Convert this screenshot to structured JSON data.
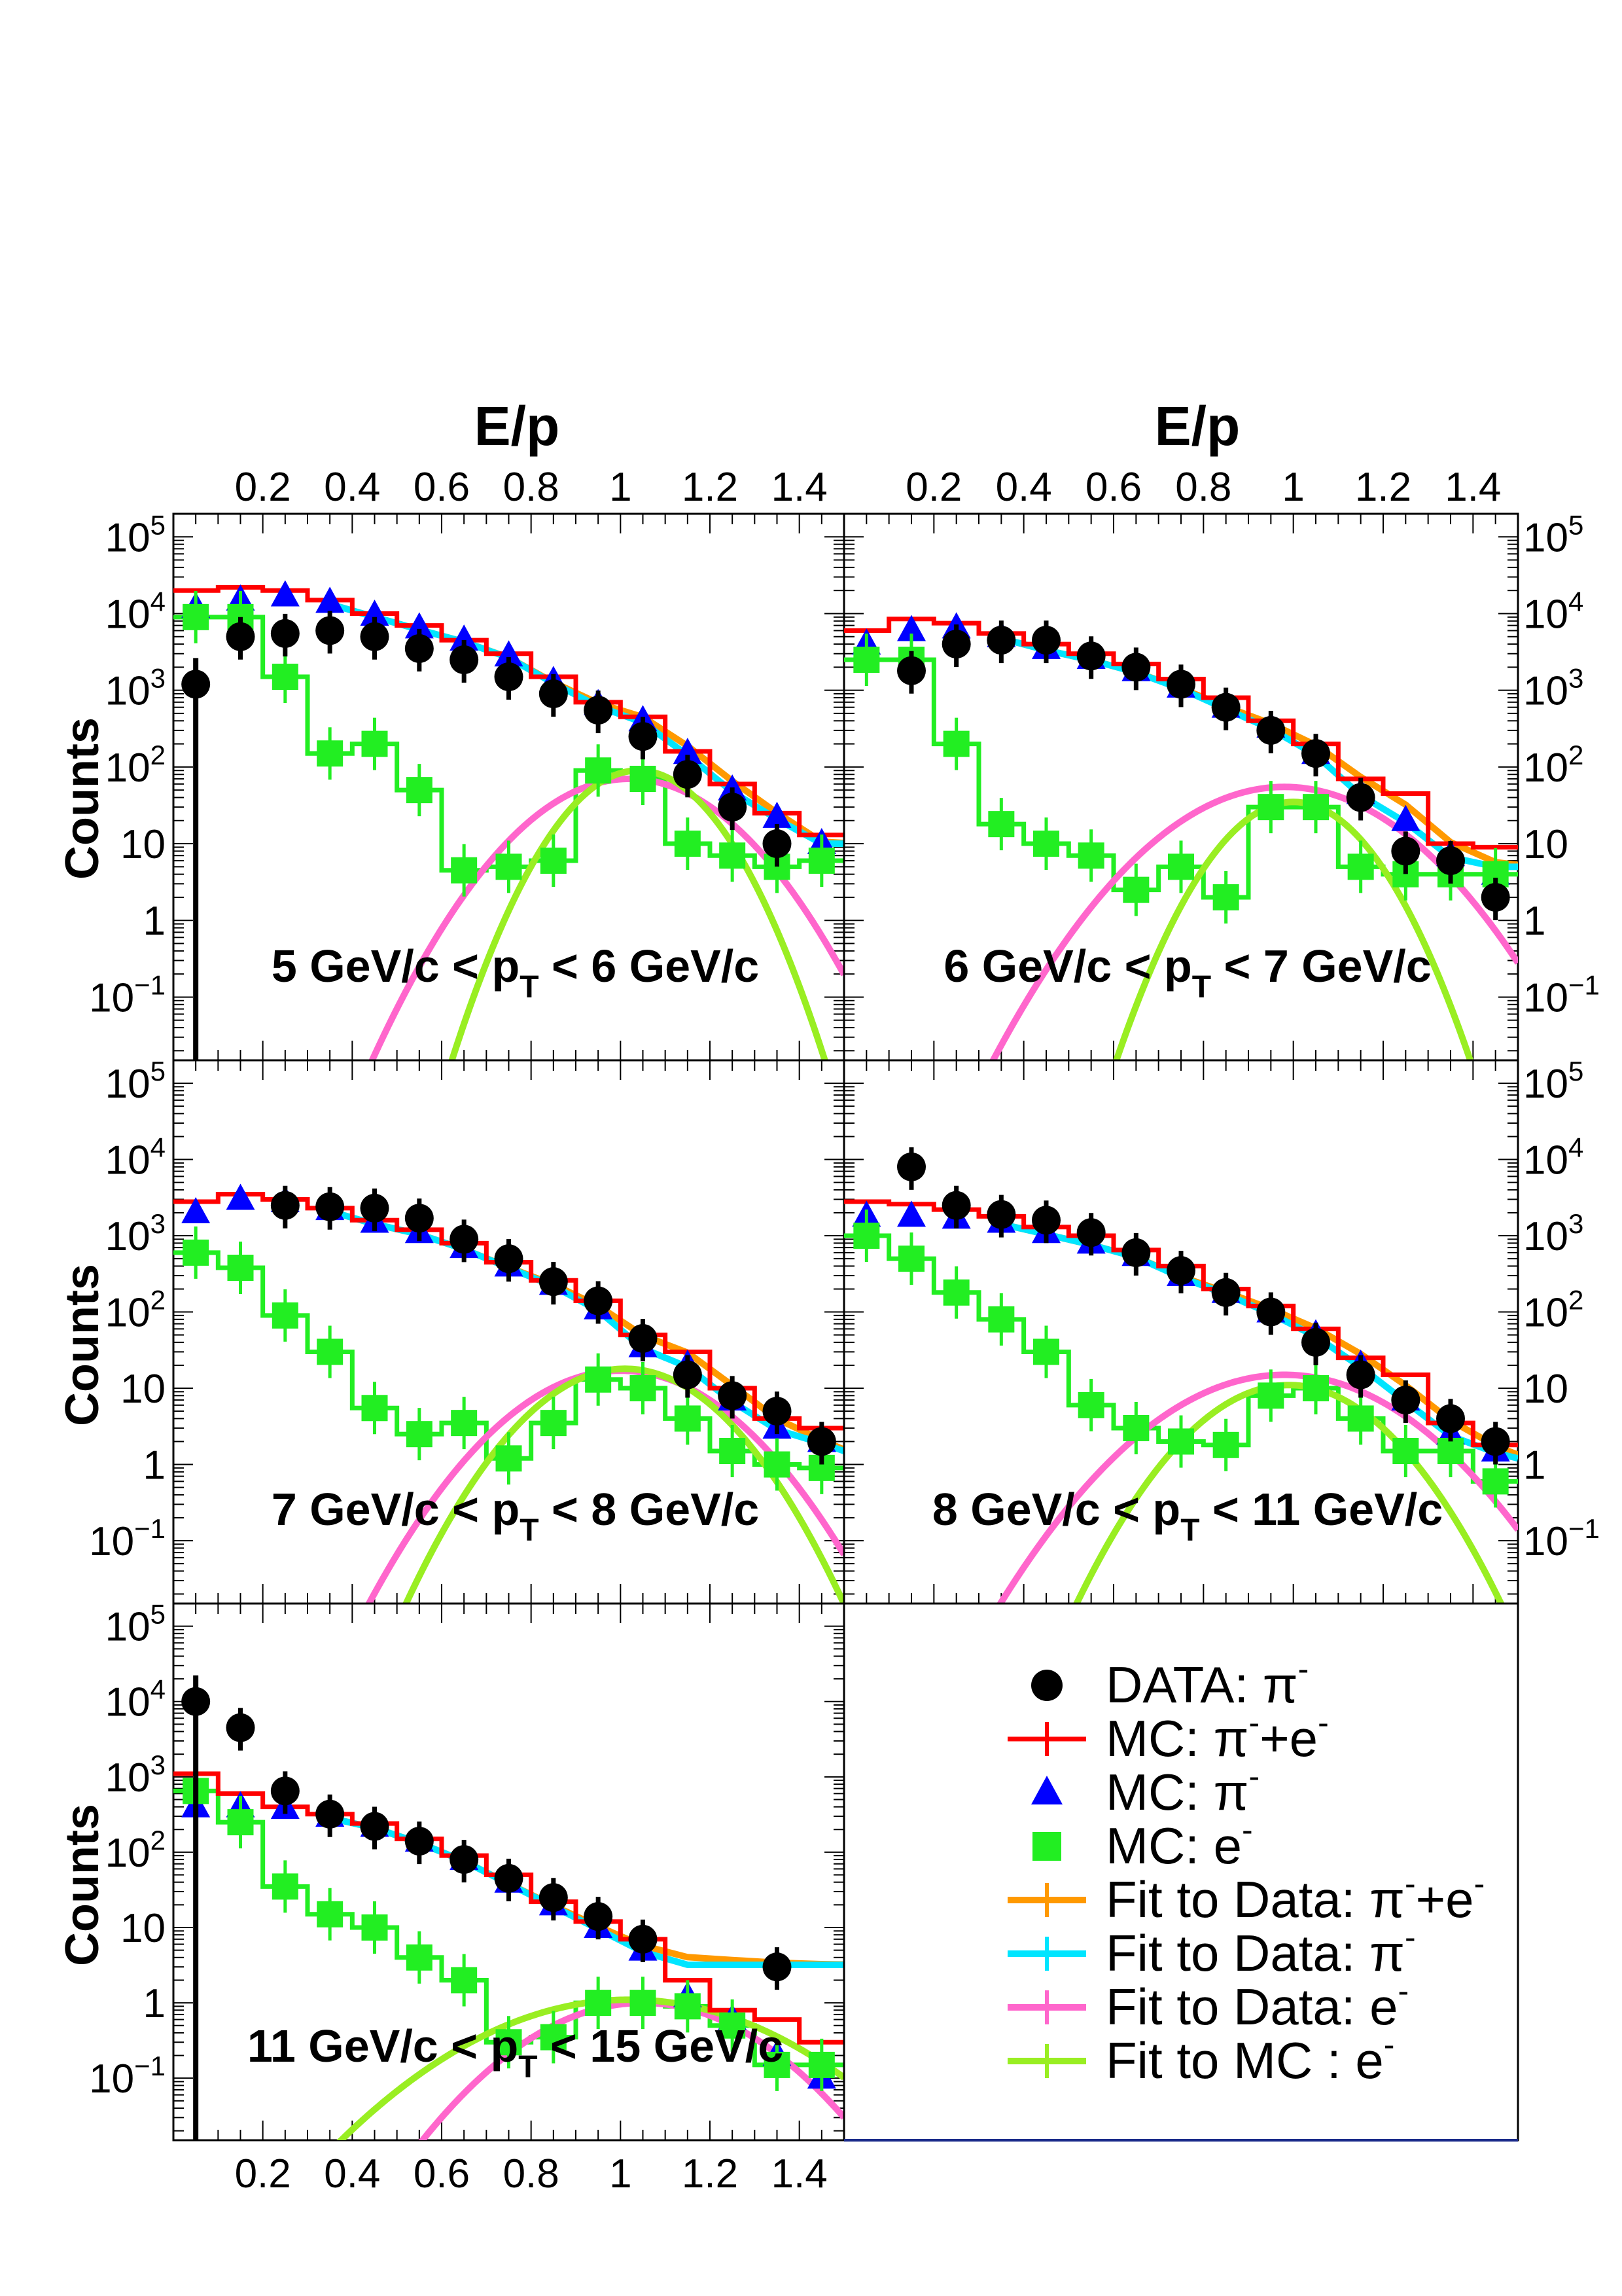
{
  "figure": {
    "xlabel": "E/p",
    "ylabel": "Counts"
  },
  "colors": {
    "data": "#000000",
    "mc_sum": "#ff0000",
    "mc_pi": "#0000ff",
    "mc_e": "#22ee22",
    "fit_sum": "#ff9900",
    "fit_pi": "#00e5ff",
    "fit_e": "#ff66cc",
    "fit_mc_e": "#99ee22"
  },
  "legend": [
    {
      "key": "data",
      "label": "DATA: π",
      "sup": "-"
    },
    {
      "key": "mc_sum",
      "label": "MC: π",
      "sup": "-",
      "tail": "+e",
      "sup2": "-"
    },
    {
      "key": "mc_pi",
      "label": "MC: π",
      "sup": "-"
    },
    {
      "key": "mc_e",
      "label": "MC: e",
      "sup": "-"
    },
    {
      "key": "fit_sum",
      "label": "Fit to Data: π",
      "sup": "-",
      "tail": "+e",
      "sup2": "-"
    },
    {
      "key": "fit_pi",
      "label": "Fit to Data: π",
      "sup": "-"
    },
    {
      "key": "fit_e",
      "label": "Fit to Data: e",
      "sup": "-"
    },
    {
      "key": "fit_mc_e",
      "label": "Fit to MC : e",
      "sup": "-"
    }
  ],
  "chart_data": [
    {
      "type": "scatter",
      "panel": "5-6",
      "label_pre": "5 GeV/c < p",
      "label_sub": "T",
      "label_post": " < 6 GeV/c",
      "xlim": [
        0,
        1.5
      ],
      "ylim": [
        0.015,
        200000
      ],
      "yscale": "log",
      "xticks": [
        "0.2",
        "0.4",
        "0.6",
        "0.8",
        "1",
        "1.2",
        "1.4"
      ],
      "x": [
        0.05,
        0.15,
        0.25,
        0.35,
        0.45,
        0.55,
        0.65,
        0.75,
        0.85,
        0.95,
        1.05,
        1.15,
        1.25,
        1.35,
        1.45
      ],
      "series": [
        {
          "name": "DATA: π-",
          "key": "data",
          "values": [
            1200,
            5000,
            5500,
            6000,
            5000,
            3500,
            2500,
            1500,
            900,
            550,
            250,
            80,
            30,
            10,
            null
          ]
        },
        {
          "name": "MC: π-+e-",
          "key": "mc_sum",
          "values": [
            20000,
            22000,
            20000,
            15000,
            10000,
            7000,
            4500,
            3000,
            1500,
            700,
            450,
            160,
            60,
            25,
            13
          ]
        },
        {
          "name": "MC: π-",
          "key": "mc_pi",
          "values": [
            12000,
            15000,
            17000,
            14000,
            9500,
            6500,
            4500,
            2800,
            1300,
            650,
            400,
            150,
            50,
            22,
            10
          ]
        },
        {
          "name": "MC: e-",
          "key": "mc_e",
          "values": [
            9000,
            9000,
            1500,
            150,
            200,
            50,
            4.5,
            5,
            6,
            90,
            70,
            10,
            7,
            5,
            6
          ]
        }
      ],
      "fits": {
        "fit_e_peak": 70,
        "fit_e_mu": 1.02,
        "fit_e_sigma": 0.14,
        "fit_mc_e_peak": 90,
        "fit_mc_e_mu": 1.04,
        "fit_mc_e_sigma": 0.1,
        "fit_pi_tail": 10
      }
    },
    {
      "type": "scatter",
      "panel": "6-7",
      "label_pre": "6 GeV/c < p",
      "label_sub": "T",
      "label_post": " < 7 GeV/c",
      "xlim": [
        0,
        1.5
      ],
      "ylim": [
        0.015,
        200000
      ],
      "yscale": "log",
      "xticks": [
        "0.2",
        "0.4",
        "0.6",
        "0.8",
        "1",
        "1.2",
        "1.4"
      ],
      "x": [
        0.05,
        0.15,
        0.25,
        0.35,
        0.45,
        0.55,
        0.65,
        0.75,
        0.85,
        0.95,
        1.05,
        1.15,
        1.25,
        1.35,
        1.45
      ],
      "series": [
        {
          "name": "DATA: π-",
          "key": "data",
          "values": [
            null,
            1800,
            4000,
            4500,
            4500,
            2800,
            2000,
            1200,
            600,
            300,
            150,
            40,
            8,
            6,
            2
          ]
        },
        {
          "name": "MC: π-+e-",
          "key": "mc_sum",
          "values": [
            6000,
            8500,
            7500,
            5500,
            4000,
            3000,
            2200,
            1400,
            800,
            400,
            200,
            70,
            45,
            10,
            9
          ]
        },
        {
          "name": "MC: π-",
          "key": "mc_pi",
          "values": [
            4000,
            6000,
            6500,
            5000,
            3500,
            2600,
            1800,
            1100,
            600,
            330,
            150,
            45,
            20,
            7,
            4
          ]
        },
        {
          "name": "MC: e-",
          "key": "mc_e",
          "values": [
            2500,
            2500,
            200,
            18,
            10,
            7,
            2.5,
            5,
            2,
            30,
            30,
            5,
            4,
            4,
            4
          ]
        }
      ],
      "fits": {
        "fit_e_peak": 55,
        "fit_e_mu": 0.98,
        "fit_e_sigma": 0.16,
        "fit_mc_e_peak": 35,
        "fit_mc_e_mu": 1.0,
        "fit_mc_e_sigma": 0.1,
        "fit_pi_tail": 5
      }
    },
    {
      "type": "scatter",
      "panel": "7-8",
      "label_pre": "7 GeV/c < p",
      "label_sub": "T",
      "label_post": " < 8 GeV/c",
      "xlim": [
        0,
        1.5
      ],
      "ylim": [
        0.015,
        200000
      ],
      "yscale": "log",
      "xticks": [
        "0.2",
        "0.4",
        "0.6",
        "0.8",
        "1",
        "1.2",
        "1.4"
      ],
      "x": [
        0.05,
        0.15,
        0.25,
        0.35,
        0.45,
        0.55,
        0.65,
        0.75,
        0.85,
        0.95,
        1.05,
        1.15,
        1.25,
        1.35,
        1.45
      ],
      "series": [
        {
          "name": "DATA: π-",
          "key": "data",
          "values": [
            null,
            null,
            2500,
            2400,
            2300,
            1700,
            900,
            500,
            250,
            140,
            45,
            15,
            8,
            5,
            2
          ]
        },
        {
          "name": "MC: π-+e-",
          "key": "mc_sum",
          "values": [
            2800,
            3500,
            3000,
            2300,
            1600,
            1200,
            800,
            450,
            260,
            140,
            50,
            30,
            10,
            4,
            3
          ]
        },
        {
          "name": "MC: π-",
          "key": "mc_pi",
          "values": [
            2000,
            3000,
            2800,
            2200,
            1500,
            1100,
            700,
            400,
            230,
            110,
            35,
            20,
            7,
            3,
            2
          ]
        },
        {
          "name": "MC: e-",
          "key": "mc_e",
          "values": [
            600,
            380,
            90,
            30,
            5.5,
            2.5,
            3.5,
            1.2,
            3.5,
            13,
            10,
            4,
            1.5,
            1,
            0.9
          ]
        }
      ],
      "fits": {
        "fit_e_peak": 17,
        "fit_e_mu": 1.0,
        "fit_e_sigma": 0.15,
        "fit_mc_e_peak": 18,
        "fit_mc_e_mu": 1.01,
        "fit_mc_e_sigma": 0.13,
        "fit_pi_tail": 1.5
      }
    },
    {
      "type": "scatter",
      "panel": "8-11",
      "label_pre": "8 GeV/c < p",
      "label_sub": "T",
      "label_post": " < 11 GeV/c",
      "xlim": [
        0,
        1.5
      ],
      "ylim": [
        0.015,
        200000
      ],
      "yscale": "log",
      "xticks": [
        "0.2",
        "0.4",
        "0.6",
        "0.8",
        "1",
        "1.2",
        "1.4"
      ],
      "x": [
        0.05,
        0.15,
        0.25,
        0.35,
        0.45,
        0.55,
        0.65,
        0.75,
        0.85,
        0.95,
        1.05,
        1.15,
        1.25,
        1.35,
        1.45
      ],
      "series": [
        {
          "name": "DATA: π-",
          "key": "data",
          "values": [
            null,
            8000,
            2500,
            1900,
            1600,
            1100,
            600,
            350,
            180,
            100,
            40,
            15,
            7,
            4,
            2
          ]
        },
        {
          "name": "MC: π-+e-",
          "key": "mc_sum",
          "values": [
            2800,
            2600,
            2200,
            1800,
            1300,
            1000,
            650,
            400,
            200,
            120,
            60,
            25,
            15,
            3.5,
            1.8
          ]
        },
        {
          "name": "MC: π-",
          "key": "mc_pi",
          "values": [
            1800,
            1800,
            1700,
            1500,
            1100,
            800,
            550,
            300,
            180,
            100,
            50,
            20,
            7,
            2.5,
            1.5
          ]
        },
        {
          "name": "MC: e-",
          "key": "mc_e",
          "values": [
            1000,
            500,
            180,
            80,
            30,
            6,
            3,
            2,
            1.8,
            8,
            10,
            4,
            1.5,
            1.5,
            0.6
          ]
        }
      ],
      "fits": {
        "fit_e_peak": 15,
        "fit_e_mu": 0.98,
        "fit_e_sigma": 0.17,
        "fit_mc_e_peak": 11,
        "fit_mc_e_mu": 0.99,
        "fit_mc_e_sigma": 0.13,
        "fit_pi_tail": 1.2
      }
    },
    {
      "type": "scatter",
      "panel": "11-15",
      "label_pre": "11 GeV/c < p",
      "label_sub": "T",
      "label_post": " < 15 GeV/c",
      "xlim": [
        0,
        1.5
      ],
      "ylim": [
        0.015,
        200000
      ],
      "yscale": "log",
      "xticks": [
        "0.2",
        "0.4",
        "0.6",
        "0.8",
        "1",
        "1.2",
        "1.4"
      ],
      "x": [
        0.05,
        0.15,
        0.25,
        0.35,
        0.45,
        0.55,
        0.65,
        0.75,
        0.85,
        0.95,
        1.05,
        1.15,
        1.25,
        1.35,
        1.45
      ],
      "series": [
        {
          "name": "DATA: π-",
          "key": "data",
          "values": [
            10000,
            4500,
            650,
            320,
            220,
            140,
            80,
            45,
            25,
            14,
            7,
            null,
            null,
            3,
            null
          ]
        },
        {
          "name": "MC: π-+e-",
          "key": "mc_sum",
          "values": [
            1100,
            600,
            400,
            320,
            240,
            150,
            90,
            50,
            22,
            12,
            7,
            2,
            0.8,
            0.6,
            0.3
          ]
        },
        {
          "name": "MC: π-",
          "key": "mc_pi",
          "values": [
            400,
            400,
            380,
            300,
            220,
            140,
            80,
            40,
            20,
            10,
            5,
            1.2,
            0.6,
            0.2,
            0.1
          ]
        },
        {
          "name": "MC: e-",
          "key": "mc_e",
          "values": [
            650,
            250,
            35,
            15,
            10,
            4,
            2,
            0.3,
            0.35,
            1,
            1,
            0.9,
            0.5,
            0.15,
            0.15
          ]
        }
      ],
      "fits": {
        "fit_e_peak": 1.0,
        "fit_e_mu": 1.05,
        "fit_e_sigma": 0.17,
        "fit_mc_e_peak": 1.1,
        "fit_mc_e_mu": 1.02,
        "fit_mc_e_sigma": 0.22,
        "fit_pi_tail": 3.2
      }
    }
  ]
}
